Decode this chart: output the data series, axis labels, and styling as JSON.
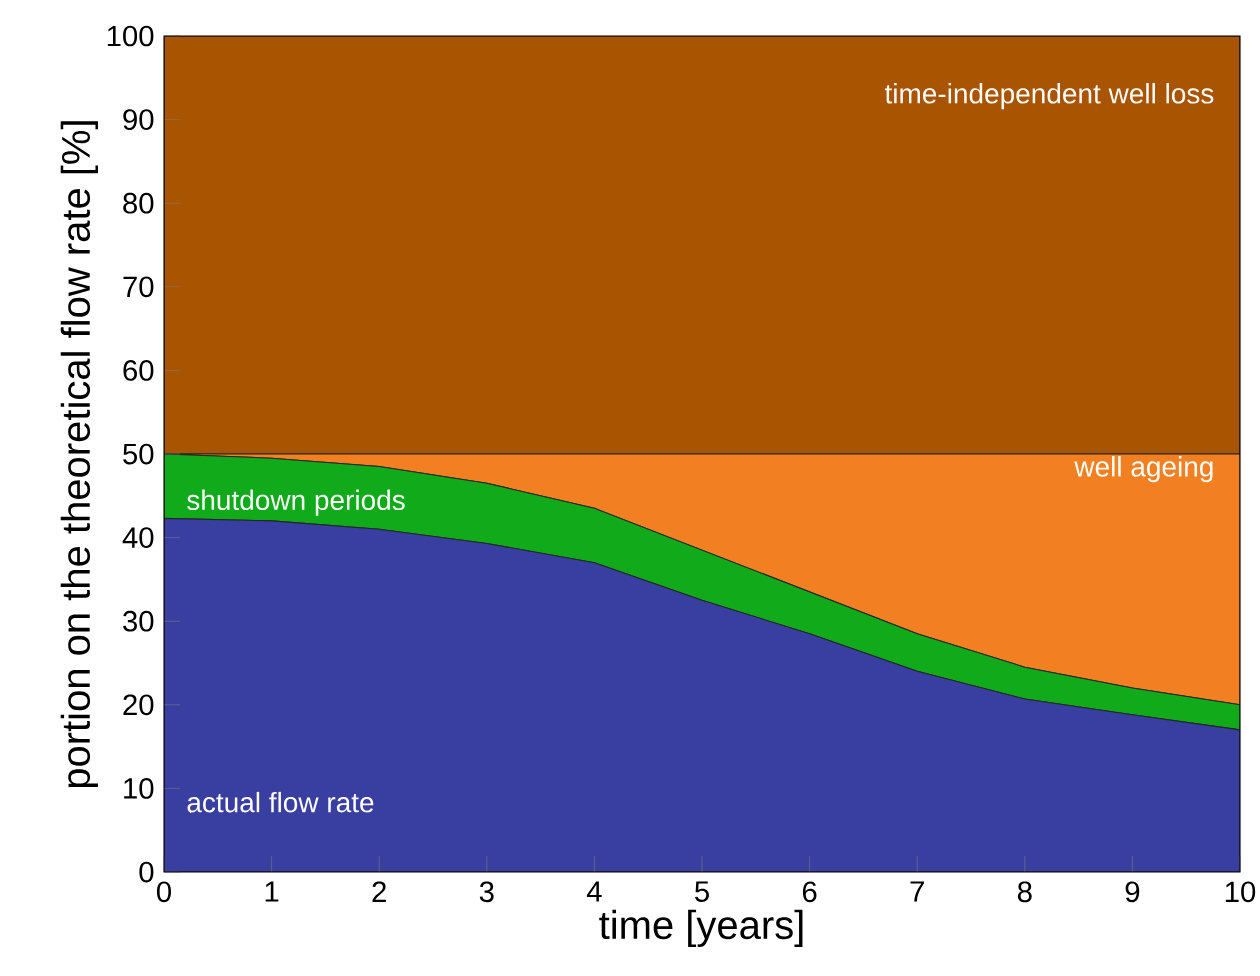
{
  "chart_data": {
    "type": "area",
    "stacked": true,
    "xlabel": "time [years]",
    "ylabel": "portion on the theoretical flow rate [%]",
    "x": [
      0,
      1,
      2,
      3,
      4,
      5,
      6,
      7,
      8,
      9,
      10
    ],
    "xlim": [
      0,
      10
    ],
    "xticks": [
      0,
      1,
      2,
      3,
      4,
      5,
      6,
      7,
      8,
      9,
      10
    ],
    "ylim": [
      0,
      100
    ],
    "yticks": [
      0,
      10,
      20,
      30,
      40,
      50,
      60,
      70,
      80,
      90,
      100
    ],
    "series": [
      {
        "name": "actual flow rate",
        "color": "#393fa0",
        "values": [
          42.3,
          42,
          41,
          39.3,
          37,
          32.5,
          28.5,
          24,
          20.7,
          18.8,
          17
        ]
      },
      {
        "name": "shutdown periods",
        "color": "#10aa1a",
        "values": [
          7.7,
          7.5,
          7.5,
          7.2,
          6.5,
          6,
          5,
          4.5,
          3.8,
          3.2,
          3
        ]
      },
      {
        "name": "well ageing",
        "color": "#f28022",
        "values": [
          0,
          0.5,
          1.5,
          3.5,
          6.5,
          11.5,
          16.5,
          21.5,
          25.5,
          28,
          30
        ]
      },
      {
        "name": "time-independent well loss",
        "color": "#a95400",
        "values": [
          50,
          50,
          50,
          50,
          50,
          50,
          50,
          50,
          50,
          50,
          50
        ]
      }
    ]
  }
}
